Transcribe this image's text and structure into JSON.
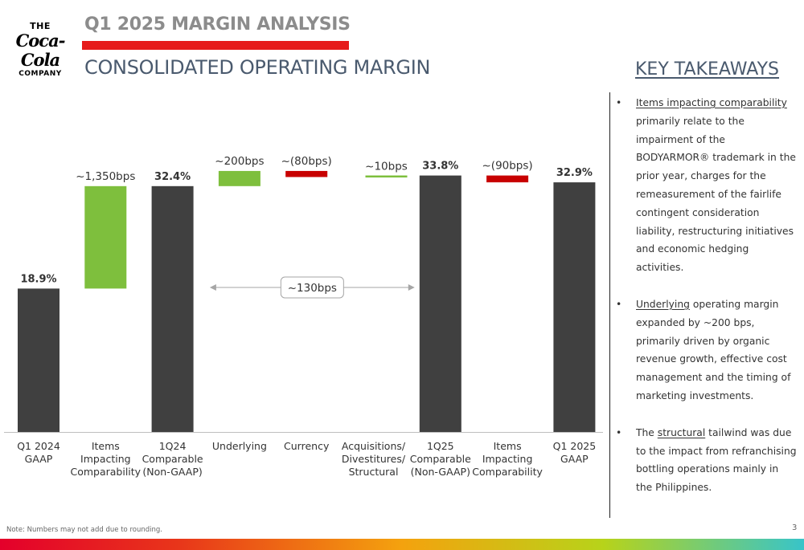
{
  "header": {
    "logo": {
      "the": "THE",
      "script": "Coca-Cola",
      "company": "COMPANY"
    },
    "title": "Q1 2025 MARGIN ANALYSIS",
    "subtitle": "CONSOLIDATED OPERATING MARGIN"
  },
  "colors": {
    "total": "#404040",
    "increase": "#7ebf3d",
    "decrease": "#c80000",
    "accent_red": "#e61a1a"
  },
  "chart_data": {
    "type": "bar",
    "subtype": "waterfall",
    "unit": "%",
    "categories": [
      [
        "Q1 2024",
        "GAAP"
      ],
      [
        "Items",
        "Impacting",
        "Comparability"
      ],
      [
        "1Q24",
        "Comparable",
        "(Non-GAAP)"
      ],
      [
        "Underlying"
      ],
      [
        "Currency"
      ],
      [
        "Acquisitions/",
        "Divestitures/",
        "Structural"
      ],
      [
        "1Q25",
        "Comparable",
        "(Non-GAAP)"
      ],
      [
        "Items",
        "Impacting",
        "Comparability"
      ],
      [
        "Q1 2025",
        "GAAP"
      ]
    ],
    "bars": [
      {
        "kind": "total",
        "start": 0,
        "end": 18.9,
        "label": "18.9%"
      },
      {
        "kind": "increase",
        "start": 18.9,
        "end": 32.4,
        "label": "~1,350bps"
      },
      {
        "kind": "total",
        "start": 0,
        "end": 32.4,
        "label": "32.4%"
      },
      {
        "kind": "increase",
        "start": 32.4,
        "end": 34.4,
        "label": "~200bps"
      },
      {
        "kind": "decrease",
        "start": 34.4,
        "end": 33.6,
        "label": "~(80bps)"
      },
      {
        "kind": "increase",
        "start": 33.6,
        "end": 33.7,
        "label": "~10bps"
      },
      {
        "kind": "total",
        "start": 0,
        "end": 33.8,
        "label": "33.8%"
      },
      {
        "kind": "decrease",
        "start": 33.8,
        "end": 32.9,
        "label": "~(90bps)"
      },
      {
        "kind": "total",
        "start": 0,
        "end": 32.9,
        "label": "32.9%"
      }
    ],
    "bracket": {
      "from_index": 3,
      "to_index": 5,
      "label": "~130bps"
    },
    "ylim": [
      0,
      40
    ],
    "grid": false,
    "legend": "none"
  },
  "takeaways": {
    "title": "KEY TAKEAWAYS",
    "bullet": "•",
    "items": [
      {
        "link": "Items impacting comparability",
        "text": " primarily relate to the impairment of the BODYARMOR® trademark in the prior year, charges for the remeasurement of the fairlife contingent consideration liability, restructuring initiatives and economic hedging activities."
      },
      {
        "link": "Underlying",
        "text": " operating margin expanded by ~200 bps, primarily driven by organic revenue growth, effective cost management and the timing of marketing investments."
      },
      {
        "lead": "The ",
        "link": "structural",
        "text": " tailwind was due to the impact from refranchising bottling operations mainly in the Philippines."
      }
    ]
  },
  "footer": {
    "note": "Note: Numbers may not add due to rounding.",
    "page": "3"
  }
}
